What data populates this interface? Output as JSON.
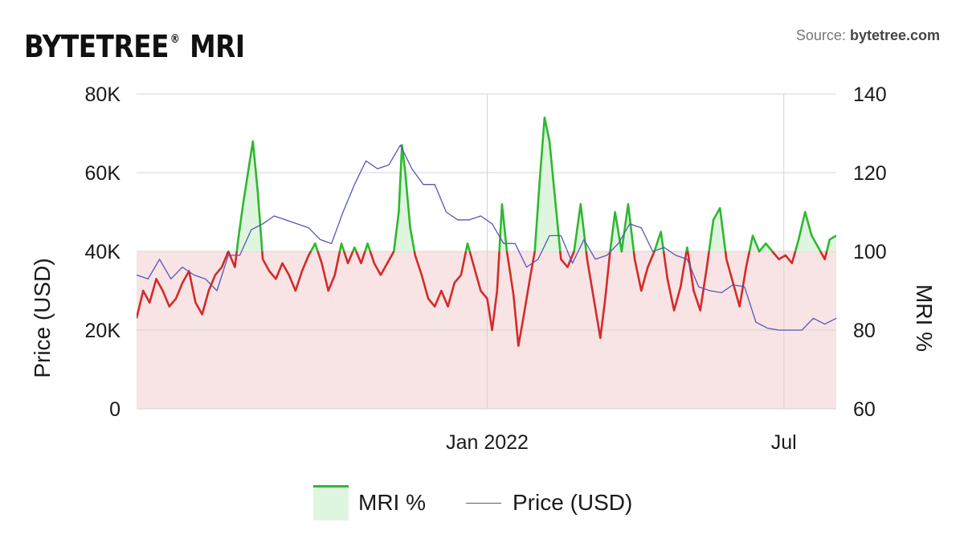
{
  "header": {
    "brand": "BYTETREE",
    "brand_mark": "®",
    "brand_suffix": "MRI",
    "source_label": "Source: ",
    "source_site": "bytetree.com"
  },
  "legend": {
    "mri_label": "MRI %",
    "price_label": "Price (USD)"
  },
  "colors": {
    "mri_above": "#2eb82e",
    "mri_below": "#d42a2a",
    "fill_above": "#dff5df",
    "fill_below": "#f8e4e4",
    "price_line": "#5555bb",
    "grid": "#d4d4d4"
  },
  "chart_data": {
    "type": "line",
    "title": "BYTETREE® MRI",
    "left_axis": {
      "label": "Price (USD)",
      "ticks": [
        "0",
        "20K",
        "40K",
        "60K",
        "80K"
      ],
      "range": [
        0,
        80000
      ]
    },
    "right_axis": {
      "label": "MRI %",
      "ticks": [
        "60",
        "80",
        "100",
        "120",
        "140"
      ],
      "range": [
        60,
        140
      ]
    },
    "x_axis": {
      "ticks": [
        "Jan 2022",
        "Jul"
      ],
      "range": [
        "2021-06-01",
        "2022-08-02"
      ]
    },
    "baseline": 100,
    "grid": true,
    "legend_position": "bottom",
    "series": [
      {
        "name": "MRI %",
        "axis": "right",
        "points": [
          [
            "2021-06-01",
            83
          ],
          [
            "2021-06-05",
            90
          ],
          [
            "2021-06-09",
            87
          ],
          [
            "2021-06-13",
            93
          ],
          [
            "2021-06-17",
            90
          ],
          [
            "2021-06-21",
            86
          ],
          [
            "2021-06-25",
            88
          ],
          [
            "2021-06-29",
            92
          ],
          [
            "2021-07-03",
            95
          ],
          [
            "2021-07-07",
            87
          ],
          [
            "2021-07-11",
            84
          ],
          [
            "2021-07-15",
            90
          ],
          [
            "2021-07-19",
            94
          ],
          [
            "2021-07-23",
            96
          ],
          [
            "2021-07-27",
            100
          ],
          [
            "2021-07-31",
            96
          ],
          [
            "2021-08-02",
            103
          ],
          [
            "2021-08-05",
            112
          ],
          [
            "2021-08-08",
            120
          ],
          [
            "2021-08-11",
            128
          ],
          [
            "2021-08-14",
            115
          ],
          [
            "2021-08-17",
            98
          ],
          [
            "2021-08-21",
            95
          ],
          [
            "2021-08-25",
            93
          ],
          [
            "2021-08-29",
            97
          ],
          [
            "2021-09-02",
            94
          ],
          [
            "2021-09-06",
            90
          ],
          [
            "2021-09-10",
            95
          ],
          [
            "2021-09-14",
            99
          ],
          [
            "2021-09-18",
            102
          ],
          [
            "2021-09-22",
            97
          ],
          [
            "2021-09-26",
            90
          ],
          [
            "2021-09-30",
            94
          ],
          [
            "2021-10-04",
            102
          ],
          [
            "2021-10-08",
            97
          ],
          [
            "2021-10-12",
            101
          ],
          [
            "2021-10-16",
            97
          ],
          [
            "2021-10-20",
            102
          ],
          [
            "2021-10-24",
            97
          ],
          [
            "2021-10-28",
            94
          ],
          [
            "2021-11-01",
            97
          ],
          [
            "2021-11-05",
            100
          ],
          [
            "2021-11-08",
            110
          ],
          [
            "2021-11-10",
            127
          ],
          [
            "2021-11-12",
            120
          ],
          [
            "2021-11-15",
            106
          ],
          [
            "2021-11-18",
            99
          ],
          [
            "2021-11-22",
            94
          ],
          [
            "2021-11-26",
            88
          ],
          [
            "2021-11-30",
            86
          ],
          [
            "2021-12-04",
            90
          ],
          [
            "2021-12-08",
            86
          ],
          [
            "2021-12-12",
            92
          ],
          [
            "2021-12-16",
            94
          ],
          [
            "2021-12-20",
            102
          ],
          [
            "2021-12-24",
            96
          ],
          [
            "2021-12-28",
            90
          ],
          [
            "2022-01-01",
            88
          ],
          [
            "2022-01-04",
            80
          ],
          [
            "2022-01-07",
            90
          ],
          [
            "2022-01-10",
            112
          ],
          [
            "2022-01-13",
            100
          ],
          [
            "2022-01-17",
            89
          ],
          [
            "2022-01-20",
            76
          ],
          [
            "2022-01-23",
            83
          ],
          [
            "2022-01-27",
            93
          ],
          [
            "2022-01-30",
            100
          ],
          [
            "2022-02-02",
            118
          ],
          [
            "2022-02-05",
            134
          ],
          [
            "2022-02-08",
            128
          ],
          [
            "2022-02-11",
            115
          ],
          [
            "2022-02-15",
            98
          ],
          [
            "2022-02-19",
            96
          ],
          [
            "2022-02-23",
            100
          ],
          [
            "2022-02-27",
            112
          ],
          [
            "2022-03-03",
            98
          ],
          [
            "2022-03-07",
            88
          ],
          [
            "2022-03-11",
            78
          ],
          [
            "2022-03-14",
            88
          ],
          [
            "2022-03-17",
            100
          ],
          [
            "2022-03-20",
            110
          ],
          [
            "2022-03-24",
            100
          ],
          [
            "2022-03-28",
            112
          ],
          [
            "2022-04-01",
            98
          ],
          [
            "2022-04-05",
            90
          ],
          [
            "2022-04-09",
            96
          ],
          [
            "2022-04-13",
            100
          ],
          [
            "2022-04-17",
            105
          ],
          [
            "2022-04-21",
            93
          ],
          [
            "2022-04-25",
            85
          ],
          [
            "2022-04-29",
            91
          ],
          [
            "2022-05-03",
            101
          ],
          [
            "2022-05-07",
            90
          ],
          [
            "2022-05-11",
            85
          ],
          [
            "2022-05-15",
            96
          ],
          [
            "2022-05-19",
            108
          ],
          [
            "2022-05-23",
            111
          ],
          [
            "2022-05-27",
            98
          ],
          [
            "2022-05-31",
            92
          ],
          [
            "2022-06-04",
            86
          ],
          [
            "2022-06-08",
            96
          ],
          [
            "2022-06-12",
            104
          ],
          [
            "2022-06-16",
            100
          ],
          [
            "2022-06-20",
            102
          ],
          [
            "2022-06-24",
            100
          ],
          [
            "2022-06-28",
            98
          ],
          [
            "2022-07-02",
            99
          ],
          [
            "2022-07-06",
            97
          ],
          [
            "2022-07-10",
            103
          ],
          [
            "2022-07-14",
            110
          ],
          [
            "2022-07-18",
            104
          ],
          [
            "2022-07-22",
            101
          ],
          [
            "2022-07-26",
            98
          ],
          [
            "2022-07-29",
            103
          ],
          [
            "2022-08-02",
            104
          ]
        ]
      },
      {
        "name": "Price (USD)",
        "axis": "left",
        "points": [
          [
            "2021-06-01",
            34000
          ],
          [
            "2021-06-08",
            33000
          ],
          [
            "2021-06-15",
            38000
          ],
          [
            "2021-06-22",
            33000
          ],
          [
            "2021-06-29",
            36000
          ],
          [
            "2021-07-06",
            34000
          ],
          [
            "2021-07-13",
            33000
          ],
          [
            "2021-07-20",
            30000
          ],
          [
            "2021-07-27",
            39000
          ],
          [
            "2021-08-03",
            39000
          ],
          [
            "2021-08-10",
            45500
          ],
          [
            "2021-08-17",
            47000
          ],
          [
            "2021-08-24",
            49000
          ],
          [
            "2021-08-31",
            48000
          ],
          [
            "2021-09-07",
            47000
          ],
          [
            "2021-09-14",
            46000
          ],
          [
            "2021-09-21",
            43000
          ],
          [
            "2021-09-28",
            42000
          ],
          [
            "2021-10-05",
            50000
          ],
          [
            "2021-10-12",
            57000
          ],
          [
            "2021-10-19",
            63000
          ],
          [
            "2021-10-26",
            61000
          ],
          [
            "2021-11-02",
            62000
          ],
          [
            "2021-11-09",
            67000
          ],
          [
            "2021-11-16",
            61000
          ],
          [
            "2021-11-23",
            57000
          ],
          [
            "2021-11-30",
            57000
          ],
          [
            "2021-12-07",
            50000
          ],
          [
            "2021-12-14",
            48000
          ],
          [
            "2021-12-21",
            48000
          ],
          [
            "2021-12-28",
            49000
          ],
          [
            "2022-01-04",
            47000
          ],
          [
            "2022-01-11",
            42000
          ],
          [
            "2022-01-18",
            42000
          ],
          [
            "2022-01-25",
            36000
          ],
          [
            "2022-02-01",
            38000
          ],
          [
            "2022-02-08",
            44000
          ],
          [
            "2022-02-15",
            44000
          ],
          [
            "2022-02-22",
            37000
          ],
          [
            "2022-03-01",
            43000
          ],
          [
            "2022-03-08",
            38000
          ],
          [
            "2022-03-15",
            39000
          ],
          [
            "2022-03-22",
            42000
          ],
          [
            "2022-03-29",
            47000
          ],
          [
            "2022-04-05",
            46000
          ],
          [
            "2022-04-12",
            40000
          ],
          [
            "2022-04-19",
            41000
          ],
          [
            "2022-04-26",
            39000
          ],
          [
            "2022-05-03",
            38000
          ],
          [
            "2022-05-10",
            31000
          ],
          [
            "2022-05-17",
            30000
          ],
          [
            "2022-05-24",
            29500
          ],
          [
            "2022-05-31",
            31500
          ],
          [
            "2022-06-07",
            31000
          ],
          [
            "2022-06-14",
            22000
          ],
          [
            "2022-06-21",
            20500
          ],
          [
            "2022-06-28",
            20000
          ],
          [
            "2022-07-05",
            20000
          ],
          [
            "2022-07-12",
            20000
          ],
          [
            "2022-07-19",
            23000
          ],
          [
            "2022-07-26",
            21500
          ],
          [
            "2022-08-02",
            23000
          ]
        ]
      }
    ]
  }
}
